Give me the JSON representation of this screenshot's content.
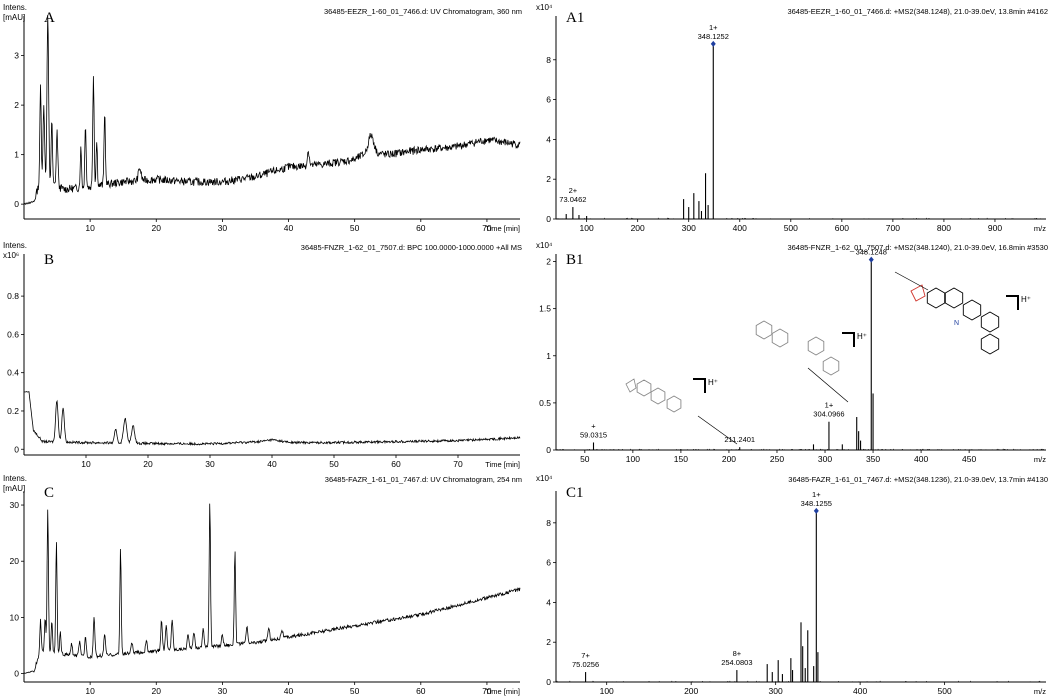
{
  "panels": [
    {
      "id": "A",
      "letter": "A",
      "header": "36485-EEZR_1-60_01_7466.d: UV Chromatogram, 360 nm",
      "ylabel1": "Intens.",
      "ylabel2": "[mAU]",
      "xunit": "Time [min]"
    },
    {
      "id": "A1",
      "letter": "A1",
      "header": "36485-EEZR_1-60_01_7466.d: +MS2(348.1248), 21.0-39.0eV, 13.8min #4162",
      "ylabel1": "x10⁴",
      "ylabel2": "",
      "xunit": "m/z"
    },
    {
      "id": "B",
      "letter": "B",
      "header": "36485-FNZR_1-62_01_7507.d: BPC 100.0000-1000.0000 +All MS",
      "ylabel1": "Intens.",
      "ylabel2": "x10⁶",
      "xunit": "Time [min]"
    },
    {
      "id": "B1",
      "letter": "B1",
      "header": "36485-FNZR_1-62_01_7507.d: +MS2(348.1240), 21.0-39.0eV, 16.8min #3530",
      "ylabel1": "x10⁴",
      "ylabel2": "",
      "xunit": "m/z"
    },
    {
      "id": "C",
      "letter": "C",
      "header": "36485-FAZR_1-61_01_7467.d: UV Chromatogram, 254 nm",
      "ylabel1": "Intens.",
      "ylabel2": "[mAU]",
      "xunit": "Time [min]"
    },
    {
      "id": "C1",
      "letter": "C1",
      "header": "36485-FAZR_1-61_01_7467.d: +MS2(348.1236), 21.0-39.0eV, 13.7min #4130",
      "ylabel1": "x10⁴",
      "ylabel2": "",
      "xunit": "m/z"
    }
  ],
  "chart_data": [
    {
      "id": "A",
      "type": "line",
      "xlim": [
        0,
        75
      ],
      "ylim": [
        -0.3,
        3.8
      ],
      "xticks": [
        10,
        20,
        30,
        40,
        50,
        60,
        70
      ],
      "yticks": [
        0,
        1,
        2,
        3
      ],
      "baseline": [
        [
          0,
          0
        ],
        [
          1.5,
          0.05
        ],
        [
          2.5,
          0.5
        ],
        [
          3.5,
          0.45
        ],
        [
          6,
          0.3
        ],
        [
          10,
          0.35
        ],
        [
          15,
          0.45
        ],
        [
          20,
          0.5
        ],
        [
          25,
          0.45
        ],
        [
          30,
          0.45
        ],
        [
          35,
          0.55
        ],
        [
          40,
          0.75
        ],
        [
          45,
          0.8
        ],
        [
          50,
          0.9
        ],
        [
          52,
          1.05
        ],
        [
          55,
          1.0
        ],
        [
          60,
          1.1
        ],
        [
          65,
          1.15
        ],
        [
          70,
          1.3
        ],
        [
          75,
          1.2
        ]
      ],
      "noise": 0.08,
      "peaks": [
        [
          2.5,
          1.9,
          0.1
        ],
        [
          3.0,
          1.5,
          0.12
        ],
        [
          3.6,
          3.4,
          0.12
        ],
        [
          4.2,
          1.3,
          0.1
        ],
        [
          5.0,
          1.1,
          0.12
        ],
        [
          8.6,
          0.8,
          0.1
        ],
        [
          9.3,
          1.3,
          0.1
        ],
        [
          10.5,
          2.3,
          0.1
        ],
        [
          11.0,
          0.9,
          0.1
        ],
        [
          12.2,
          1.5,
          0.1
        ],
        [
          17.5,
          0.25,
          0.2
        ],
        [
          43,
          0.3,
          0.15
        ],
        [
          52.5,
          0.35,
          0.4
        ]
      ]
    },
    {
      "id": "A1",
      "type": "bar",
      "xlim": [
        40,
        1000
      ],
      "ylim": [
        0,
        10.2
      ],
      "xticks": [
        100,
        200,
        300,
        400,
        500,
        600,
        700,
        800,
        900
      ],
      "yticks": [
        0,
        2,
        4,
        6,
        8
      ],
      "peaks": [
        [
          60,
          0.25
        ],
        [
          73.0462,
          0.6
        ],
        [
          85,
          0.2
        ],
        [
          100,
          0.15
        ],
        [
          290,
          1.0
        ],
        [
          300,
          0.6
        ],
        [
          310,
          1.3
        ],
        [
          320,
          0.9
        ],
        [
          325,
          0.4
        ],
        [
          333,
          2.3
        ],
        [
          338,
          0.7
        ],
        [
          348.1252,
          8.8
        ]
      ],
      "diamond": 348.1252
    },
    {
      "id": "B",
      "type": "line",
      "xlim": [
        0,
        80
      ],
      "ylim": [
        -0.03,
        1.02
      ],
      "xticks": [
        10,
        20,
        30,
        40,
        50,
        60,
        70
      ],
      "yticks": [
        0,
        0.2,
        0.4,
        0.6,
        0.8
      ],
      "baseline": [
        [
          0,
          0.3
        ],
        [
          0.8,
          0.3
        ],
        [
          1.5,
          0.1
        ],
        [
          3,
          0.04
        ],
        [
          10,
          0.035
        ],
        [
          20,
          0.03
        ],
        [
          30,
          0.028
        ],
        [
          38,
          0.04
        ],
        [
          40,
          0.05
        ],
        [
          43,
          0.035
        ],
        [
          50,
          0.035
        ],
        [
          60,
          0.04
        ],
        [
          70,
          0.045
        ],
        [
          80,
          0.06
        ]
      ],
      "noise": 0.006,
      "peaks": [
        [
          0.6,
          0.62,
          0.15
        ],
        [
          5.3,
          0.22,
          0.2
        ],
        [
          6.3,
          0.18,
          0.2
        ],
        [
          14.8,
          0.07,
          0.2
        ],
        [
          16.3,
          0.13,
          0.25
        ],
        [
          17.6,
          0.09,
          0.25
        ]
      ]
    },
    {
      "id": "B1",
      "type": "bar",
      "xlim": [
        20,
        530
      ],
      "ylim": [
        0,
        2.08
      ],
      "xticks": [
        50,
        100,
        150,
        200,
        250,
        300,
        350,
        400,
        450
      ],
      "yticks": [
        0,
        0.5,
        1.0,
        1.5,
        2.0
      ],
      "peaks": [
        [
          59.0315,
          0.08
        ],
        [
          211.2401,
          0.03
        ],
        [
          288,
          0.06
        ],
        [
          304.0966,
          0.3
        ],
        [
          318,
          0.06
        ],
        [
          333,
          0.35
        ],
        [
          335,
          0.2
        ],
        [
          337,
          0.1
        ],
        [
          348.1248,
          2.02
        ],
        [
          350,
          0.6
        ]
      ],
      "diamond": 348.1248
    },
    {
      "id": "C",
      "type": "line",
      "xlim": [
        0,
        75
      ],
      "ylim": [
        -1.5,
        32.5
      ],
      "xticks": [
        10,
        20,
        30,
        40,
        50,
        60,
        70
      ],
      "yticks": [
        0,
        10,
        20,
        30
      ],
      "baseline": [
        [
          0,
          0
        ],
        [
          1.5,
          0.5
        ],
        [
          2.5,
          4
        ],
        [
          5,
          3.5
        ],
        [
          10,
          3
        ],
        [
          15,
          3.5
        ],
        [
          20,
          4
        ],
        [
          25,
          4.5
        ],
        [
          30,
          5
        ],
        [
          35,
          5.5
        ],
        [
          40,
          6.5
        ],
        [
          45,
          7.5
        ],
        [
          50,
          8.5
        ],
        [
          55,
          9.5
        ],
        [
          60,
          10.5
        ],
        [
          65,
          12
        ],
        [
          70,
          13.5
        ],
        [
          75,
          15
        ]
      ],
      "noise": 0.3,
      "peaks": [
        [
          2.5,
          5.5,
          0.1
        ],
        [
          3.2,
          6,
          0.1
        ],
        [
          3.6,
          26,
          0.1
        ],
        [
          4.2,
          6,
          0.1
        ],
        [
          4.9,
          20,
          0.1
        ],
        [
          5.5,
          4,
          0.1
        ],
        [
          7.2,
          2,
          0.12
        ],
        [
          8.4,
          2.5,
          0.12
        ],
        [
          9.3,
          3.5,
          0.12
        ],
        [
          10.6,
          7,
          0.12
        ],
        [
          12.2,
          4,
          0.12
        ],
        [
          14.6,
          19,
          0.1
        ],
        [
          16.3,
          2,
          0.12
        ],
        [
          18.5,
          2,
          0.12
        ],
        [
          20.8,
          5.5,
          0.12
        ],
        [
          21.5,
          4.5,
          0.12
        ],
        [
          22.4,
          5.5,
          0.12
        ],
        [
          24.8,
          2.5,
          0.12
        ],
        [
          25.7,
          3,
          0.12
        ],
        [
          27.1,
          3.5,
          0.12
        ],
        [
          28.1,
          26,
          0.1
        ],
        [
          30,
          2,
          0.12
        ],
        [
          31.9,
          17,
          0.1
        ],
        [
          33.7,
          3,
          0.12
        ],
        [
          37,
          2,
          0.15
        ],
        [
          39,
          1.5,
          0.15
        ]
      ]
    },
    {
      "id": "C1",
      "type": "bar",
      "xlim": [
        40,
        620
      ],
      "ylim": [
        0,
        9.6
      ],
      "xticks": [
        100,
        200,
        300,
        400,
        500
      ],
      "yticks": [
        0,
        2,
        4,
        6,
        8
      ],
      "peaks": [
        [
          75.0256,
          0.5
        ],
        [
          254.0803,
          0.6
        ],
        [
          290,
          0.9
        ],
        [
          296,
          0.5
        ],
        [
          303,
          1.1
        ],
        [
          308,
          0.4
        ],
        [
          318,
          1.2
        ],
        [
          320,
          0.6
        ],
        [
          330,
          3.0
        ],
        [
          332,
          1.8
        ],
        [
          335,
          0.7
        ],
        [
          338,
          2.6
        ],
        [
          345,
          0.8
        ],
        [
          348.1255,
          8.6
        ],
        [
          350,
          1.5
        ]
      ],
      "diamond": 348.1255
    }
  ],
  "peak_labels": {
    "A1": [
      {
        "charge": "1+",
        "mz": "348.1252",
        "x": 348.1252,
        "y": 8.8
      },
      {
        "charge": "2+",
        "mz": "73.0462",
        "x": 73.0462,
        "y": 0.6
      }
    ],
    "B1": [
      {
        "charge": "",
        "mz": "348.1248",
        "x": 348.1248,
        "y": 2.02
      },
      {
        "charge": "1+",
        "mz": "304.0966",
        "x": 304.0966,
        "y": 0.3
      },
      {
        "charge": "",
        "mz": "211.2401",
        "x": 211.2401,
        "y": 0.03
      },
      {
        "charge": "+",
        "mz": "59.0315",
        "x": 59.0315,
        "y": 0.08
      }
    ],
    "C1": [
      {
        "charge": "1+",
        "mz": "348.1255",
        "x": 348.1255,
        "y": 8.6
      },
      {
        "charge": "8+",
        "mz": "254.0803",
        "x": 254.0803,
        "y": 0.6
      },
      {
        "charge": "7+",
        "mz": "75.0256",
        "x": 75.0256,
        "y": 0.5
      }
    ]
  },
  "structure_labels": {
    "hplus": "H⁺"
  },
  "colors": {
    "trace": "#000000",
    "diamond": "#1f3fa0",
    "structure_red": "#d0342c",
    "structure_gray": "#888888"
  }
}
